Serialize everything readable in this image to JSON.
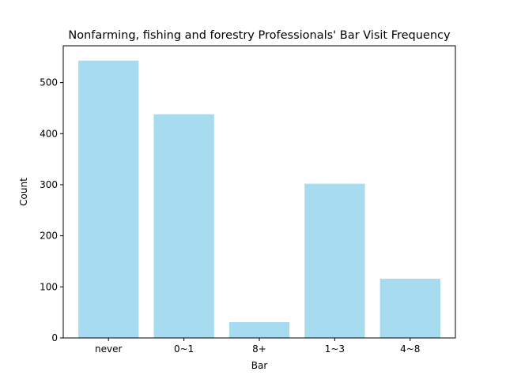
{
  "chart_data": {
    "type": "bar",
    "title": "Nonfarming, fishing and forestry Professionals' Bar Visit Frequency",
    "xlabel": "Bar",
    "ylabel": "Count",
    "categories": [
      "never",
      "0~1",
      "8+",
      "1~3",
      "4~8"
    ],
    "values": [
      543,
      438,
      31,
      302,
      116
    ],
    "ylim": [
      0,
      572
    ],
    "yticks": [
      0,
      100,
      200,
      300,
      400,
      500
    ],
    "bar_color": "#a6dbf0",
    "grid": false,
    "legend": "none"
  }
}
